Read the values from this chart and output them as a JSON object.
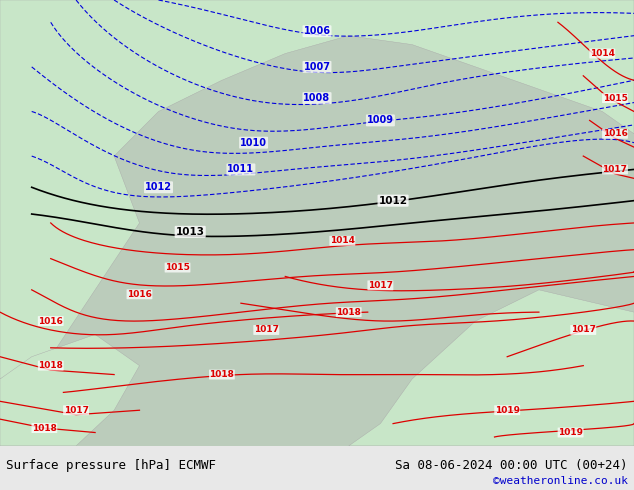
{
  "title_left": "Surface pressure [hPa] ECMWF",
  "title_right": "Sa 08-06-2024 00:00 UTC (00+24)",
  "credit": "©weatheronline.co.uk",
  "bg_color": "#d0e8d0",
  "land_color": "#c8e6c8",
  "sea_color": "#cccccc",
  "bottom_bar_color": "#e8e8e8",
  "blue_contour_color": "#0000dd",
  "black_contour_color": "#000000",
  "red_contour_color": "#dd0000",
  "credit_color": "#0000cc",
  "bottom_bar_height": 0.09,
  "font_size_bottom": 9,
  "font_size_credit": 8
}
